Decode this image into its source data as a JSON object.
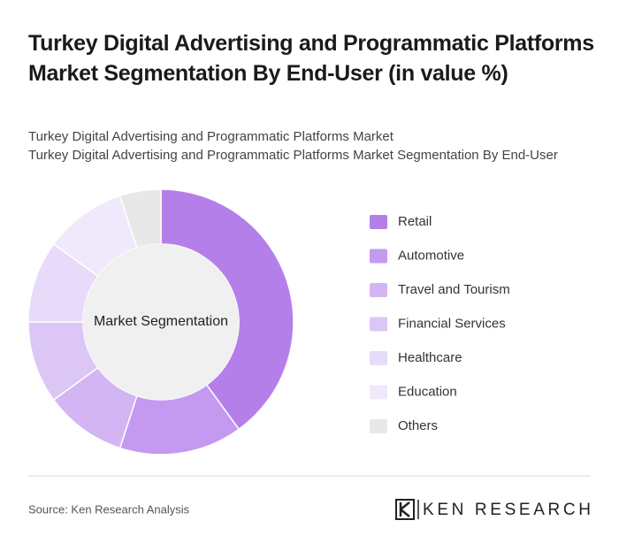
{
  "chart_data": {
    "type": "donut",
    "title": "Turkey Digital Advertising and Programmatic Platforms Market Segmentation By End-User (in value %)",
    "subtitle": [
      "Turkey Digital Advertising and Programmatic Platforms Market",
      "Turkey Digital Advertising and Programmatic Platforms Market Segmentation By End-User"
    ],
    "center_label": "Market Segmentation",
    "categories": [
      "Retail",
      "Automotive",
      "Travel and Tourism",
      "Financial Services",
      "Healthcare",
      "Education",
      "Others"
    ],
    "values": [
      40,
      15,
      10,
      10,
      10,
      10,
      5
    ],
    "colors": [
      "#b57fea",
      "#c39af0",
      "#d3b5f4",
      "#dcc6f6",
      "#e7dbf9",
      "#f0e9fb",
      "#e8e8e8"
    ],
    "source": "Source: Ken Research Analysis",
    "logo": "KEN RESEARCH"
  }
}
